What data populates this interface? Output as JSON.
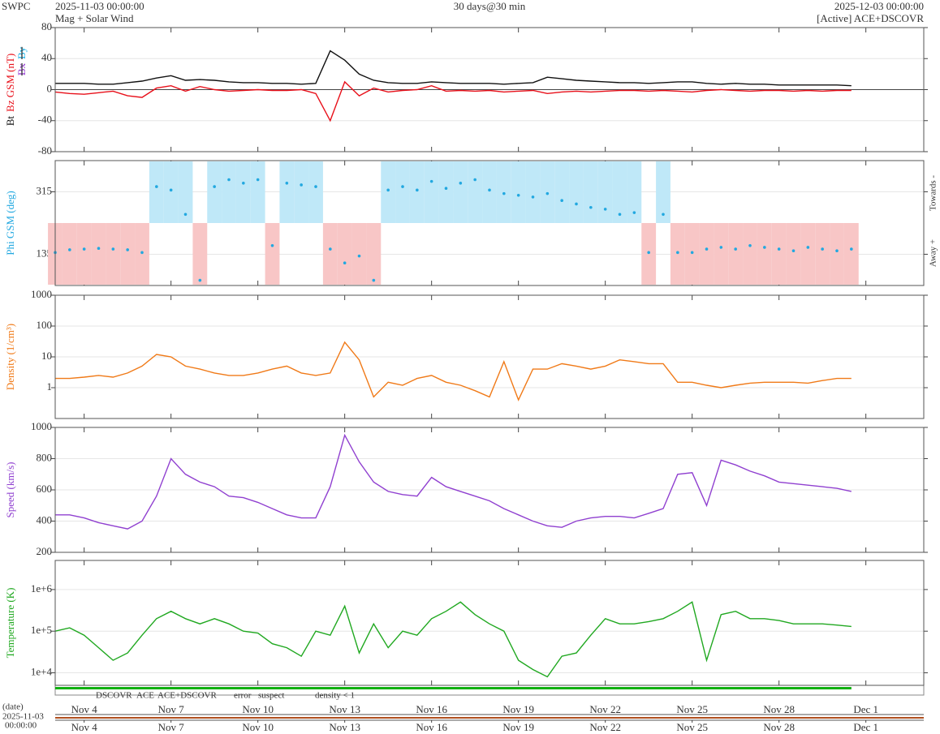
{
  "header": {
    "agency": "SWPC",
    "start": "2025-11-03 00:00:00",
    "subtitle": "Mag + Solar Wind",
    "span": "30 days@30 min",
    "end": "2025-12-03 00:00:00",
    "source": "[Active] ACE+DSCOVR"
  },
  "time_axis": {
    "xlim": [
      0,
      30
    ],
    "xticks": [
      {
        "value": 1,
        "label": "Nov 4"
      },
      {
        "value": 4,
        "label": "Nov 7"
      },
      {
        "value": 7,
        "label": "Nov 10"
      },
      {
        "value": 10,
        "label": "Nov 13"
      },
      {
        "value": 13,
        "label": "Nov 16"
      },
      {
        "value": 16,
        "label": "Nov 19"
      },
      {
        "value": 19,
        "label": "Nov 22"
      },
      {
        "value": 22,
        "label": "Nov 25"
      },
      {
        "value": 25,
        "label": "Nov 28"
      },
      {
        "value": 28,
        "label": "Dec 1"
      }
    ]
  },
  "chart_data": [
    {
      "type": "line",
      "ylim": [
        -80,
        80
      ],
      "yticks": [
        -80,
        -40,
        0,
        40,
        80
      ],
      "grid": true,
      "x": [
        0,
        0.5,
        1,
        1.5,
        2,
        2.5,
        3,
        3.5,
        4,
        4.5,
        5,
        5.5,
        6,
        6.5,
        7,
        7.5,
        8,
        8.5,
        9,
        9.5,
        10,
        10.5,
        11,
        11.5,
        12,
        12.5,
        13,
        13.5,
        14,
        14.5,
        15,
        15.5,
        16,
        16.5,
        17,
        17.5,
        18,
        18.5,
        19,
        19.5,
        20,
        20.5,
        21,
        21.5,
        22,
        22.5,
        23,
        23.5,
        24,
        24.5,
        25,
        25.5,
        26,
        26.5,
        27,
        27.5
      ],
      "series": [
        {
          "name": "Bt",
          "color": "#111111",
          "values": [
            8,
            8,
            8,
            7,
            7,
            9,
            11,
            15,
            18,
            12,
            13,
            12,
            10,
            9,
            9,
            8,
            8,
            7,
            8,
            50,
            38,
            20,
            12,
            9,
            8,
            8,
            10,
            9,
            8,
            8,
            8,
            7,
            8,
            9,
            16,
            14,
            12,
            11,
            10,
            9,
            9,
            8,
            9,
            10,
            10,
            8,
            7,
            8,
            7,
            7,
            6,
            6,
            6,
            6,
            6,
            5
          ]
        },
        {
          "name": "Bz GSM (nT)",
          "color": "#e8101a",
          "values": [
            -3,
            -5,
            -6,
            -4,
            -2,
            -8,
            -10,
            2,
            5,
            -2,
            4,
            0,
            -2,
            -1,
            0,
            -1,
            -1,
            0,
            -5,
            -40,
            10,
            -8,
            2,
            -3,
            -1,
            0,
            5,
            -2,
            -1,
            -2,
            -1,
            -3,
            -2,
            -1,
            -5,
            -3,
            -2,
            -3,
            -2,
            -1,
            -1,
            -2,
            -1,
            -2,
            -3,
            -1,
            0,
            -1,
            -2,
            -1,
            -1,
            -2,
            -1,
            -2,
            -1,
            -1
          ]
        }
      ],
      "hidden_series": [
        {
          "name": "Bx",
          "color": "#9030d0"
        },
        {
          "name": "By",
          "color": "#10b0e8"
        }
      ]
    },
    {
      "type": "scatter",
      "ylim": [
        45,
        405
      ],
      "yticks": [
        135,
        315
      ],
      "grid": true,
      "sector_labels": [
        "Towards -",
        "Away +"
      ],
      "x": [
        0,
        0.5,
        1,
        1.5,
        2,
        2.5,
        3,
        3.5,
        4,
        4.5,
        5,
        5.5,
        6,
        6.5,
        7,
        7.5,
        8,
        8.5,
        9,
        9.5,
        10,
        10.5,
        11,
        11.5,
        12,
        12.5,
        13,
        13.5,
        14,
        14.5,
        15,
        15.5,
        16,
        16.5,
        17,
        17.5,
        18,
        18.5,
        19,
        19.5,
        20,
        20.5,
        21,
        21.5,
        22,
        22.5,
        23,
        23.5,
        24,
        24.5,
        25,
        25.5,
        26,
        26.5,
        27,
        27.5
      ],
      "series": [
        {
          "name": "Phi GSM (deg)",
          "color": "#22a8e0",
          "values": [
            140,
            148,
            150,
            152,
            150,
            148,
            140,
            330,
            320,
            250,
            60,
            330,
            350,
            340,
            350,
            160,
            340,
            335,
            330,
            150,
            110,
            130,
            60,
            320,
            330,
            320,
            345,
            325,
            340,
            350,
            320,
            310,
            305,
            300,
            310,
            290,
            280,
            270,
            265,
            250,
            255,
            140,
            250,
            140,
            140,
            150,
            155,
            150,
            160,
            155,
            150,
            145,
            155,
            150,
            145,
            150
          ]
        }
      ]
    },
    {
      "type": "line",
      "log": true,
      "ylim": [
        0.1,
        1000
      ],
      "yticks": [
        1,
        10,
        100,
        1000
      ],
      "grid": true,
      "x": [
        0,
        0.5,
        1,
        1.5,
        2,
        2.5,
        3,
        3.5,
        4,
        4.5,
        5,
        5.5,
        6,
        6.5,
        7,
        7.5,
        8,
        8.5,
        9,
        9.5,
        10,
        10.5,
        11,
        11.5,
        12,
        12.5,
        13,
        13.5,
        14,
        14.5,
        15,
        15.5,
        16,
        16.5,
        17,
        17.5,
        18,
        18.5,
        19,
        19.5,
        20,
        20.5,
        21,
        21.5,
        22,
        22.5,
        23,
        23.5,
        24,
        24.5,
        25,
        25.5,
        26,
        26.5,
        27,
        27.5
      ],
      "series": [
        {
          "name": "Density (1/cm³)",
          "color": "#f07a18",
          "values": [
            2,
            2,
            2.2,
            2.5,
            2.2,
            3,
            5,
            12,
            10,
            5,
            4,
            3,
            2.5,
            2.5,
            3,
            4,
            5,
            3,
            2.5,
            3,
            30,
            8,
            0.5,
            1.5,
            1.2,
            2,
            2.5,
            1.5,
            1.2,
            0.8,
            0.5,
            7,
            0.4,
            4,
            4,
            6,
            5,
            4,
            5,
            8,
            7,
            6,
            6,
            1.5,
            1.5,
            1.2,
            1,
            1.2,
            1.4,
            1.5,
            1.5,
            1.5,
            1.4,
            1.7,
            2,
            2
          ]
        }
      ]
    },
    {
      "type": "line",
      "ylim": [
        200,
        1000
      ],
      "yticks": [
        200,
        400,
        600,
        800,
        1000
      ],
      "grid": true,
      "x": [
        0,
        0.5,
        1,
        1.5,
        2,
        2.5,
        3,
        3.5,
        4,
        4.5,
        5,
        5.5,
        6,
        6.5,
        7,
        7.5,
        8,
        8.5,
        9,
        9.5,
        10,
        10.5,
        11,
        11.5,
        12,
        12.5,
        13,
        13.5,
        14,
        14.5,
        15,
        15.5,
        16,
        16.5,
        17,
        17.5,
        18,
        18.5,
        19,
        19.5,
        20,
        20.5,
        21,
        21.5,
        22,
        22.5,
        23,
        23.5,
        24,
        24.5,
        25,
        25.5,
        26,
        26.5,
        27,
        27.5
      ],
      "series": [
        {
          "name": "Speed (km/s)",
          "color": "#9040d0",
          "values": [
            440,
            440,
            420,
            390,
            370,
            350,
            400,
            560,
            800,
            700,
            650,
            620,
            560,
            550,
            520,
            480,
            440,
            420,
            420,
            620,
            950,
            780,
            650,
            590,
            570,
            560,
            680,
            620,
            590,
            560,
            530,
            480,
            440,
            400,
            370,
            360,
            400,
            420,
            430,
            430,
            420,
            450,
            480,
            700,
            710,
            500,
            790,
            760,
            720,
            690,
            650,
            640,
            630,
            620,
            610,
            590
          ]
        }
      ]
    },
    {
      "type": "line",
      "log": true,
      "ylim": [
        5000,
        5000000
      ],
      "yticks": [
        {
          "value": 10000,
          "label": "1e+4"
        },
        {
          "value": 100000,
          "label": "1e+5"
        },
        {
          "value": 1000000,
          "label": "1e+6"
        }
      ],
      "grid": true,
      "x": [
        0,
        0.5,
        1,
        1.5,
        2,
        2.5,
        3,
        3.5,
        4,
        4.5,
        5,
        5.5,
        6,
        6.5,
        7,
        7.5,
        8,
        8.5,
        9,
        9.5,
        10,
        10.5,
        11,
        11.5,
        12,
        12.5,
        13,
        13.5,
        14,
        14.5,
        15,
        15.5,
        16,
        16.5,
        17,
        17.5,
        18,
        18.5,
        19,
        19.5,
        20,
        20.5,
        21,
        21.5,
        22,
        22.5,
        23,
        23.5,
        24,
        24.5,
        25,
        25.5,
        26,
        26.5,
        27,
        27.5
      ],
      "series": [
        {
          "name": "Temperature (K)",
          "color": "#20a820",
          "values": [
            100000,
            120000,
            80000,
            40000,
            20000,
            30000,
            80000,
            200000,
            300000,
            200000,
            150000,
            200000,
            150000,
            100000,
            90000,
            50000,
            40000,
            25000,
            100000,
            80000,
            400000,
            30000,
            150000,
            40000,
            100000,
            80000,
            200000,
            300000,
            500000,
            250000,
            150000,
            100000,
            20000,
            12000,
            8000,
            25000,
            30000,
            80000,
            200000,
            150000,
            150000,
            170000,
            200000,
            300000,
            500000,
            20000,
            250000,
            300000,
            200000,
            200000,
            180000,
            150000,
            150000,
            150000,
            140000,
            130000
          ]
        }
      ]
    }
  ],
  "source_legend": [
    {
      "name": "DSCOVR",
      "color": "#1010d0"
    },
    {
      "name": "ACE",
      "color": "#10b010"
    },
    {
      "name": "ACE+DSCOVR",
      "color": "#e020e0"
    },
    {
      "name": "error",
      "color": "#e01010"
    },
    {
      "name": "suspect",
      "color": "#e0b000"
    },
    {
      "name": "density < 1",
      "color": "#f07a18"
    }
  ],
  "footer": {
    "date_label": "(date)",
    "date": "2025-11-03",
    "time": "00:00:00"
  }
}
